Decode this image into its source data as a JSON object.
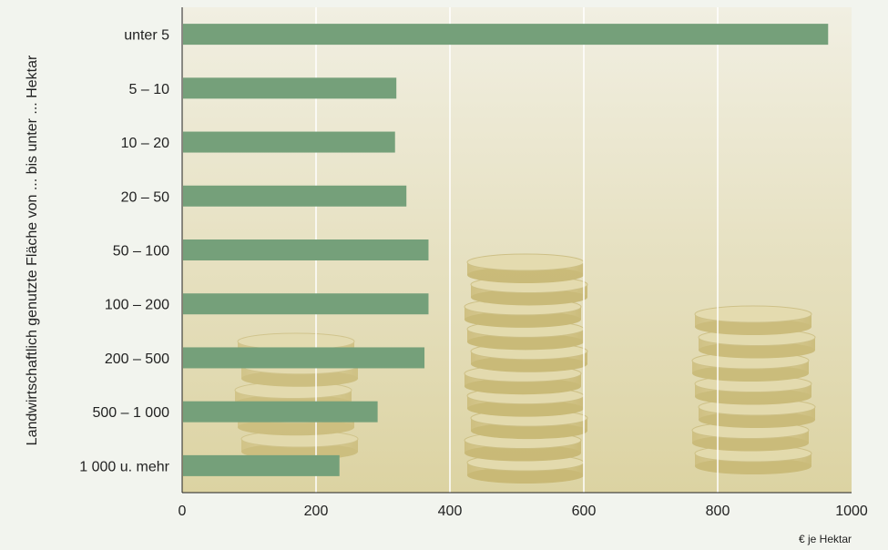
{
  "chart_data": {
    "type": "bar",
    "orientation": "horizontal",
    "title": "",
    "ylabel": "Landwirtschaftlich genutzte Fläche von ... bis  unter ... Hektar",
    "xlabel": "€ je Hektar",
    "categories": [
      "unter 5",
      "5 – 10",
      "10 – 20",
      "20 – 50",
      "50 – 100",
      "100 – 200",
      "200 – 500",
      "500 – 1 000",
      "1 000 u. mehr"
    ],
    "values": [
      965,
      320,
      318,
      335,
      368,
      368,
      362,
      292,
      235
    ],
    "xlim": [
      0,
      1000
    ],
    "xticks": [
      "0",
      "200",
      "400",
      "600",
      "800",
      "1000"
    ],
    "grid": true,
    "legend": "none",
    "colors": {
      "bar": "#75a07a",
      "background_top": "#f1efe2",
      "background_bottom": "#dcd3a2",
      "coin": "#d7c98f",
      "grid": "#ffffff"
    }
  }
}
